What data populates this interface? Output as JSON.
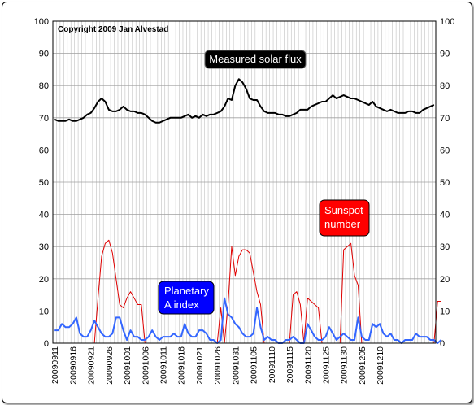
{
  "chart_data": {
    "type": "line",
    "copyright": "Copyright 2009 Jan Alvestad",
    "yticks": [
      "0",
      "10",
      "20",
      "30",
      "40",
      "50",
      "60",
      "70",
      "80",
      "90",
      "100"
    ],
    "ylim": [
      0,
      100
    ],
    "grid": true,
    "x_tick_labels": [
      "20090911",
      "20090916",
      "20090921",
      "20090926",
      "20091001",
      "20091006",
      "20091011",
      "20091016",
      "20091021",
      "20091026",
      "20091031",
      "20091105",
      "20091110",
      "20091115",
      "20091120",
      "20091125",
      "20091130",
      "20091205",
      "20091210"
    ],
    "labels": {
      "solar_flux": "Measured solar flux",
      "sunspot": [
        "Sunspot",
        "number"
      ],
      "planetary": [
        "Planetary",
        "A index"
      ]
    },
    "colors": {
      "solar_flux": "#000000",
      "sunspot": "#e00000",
      "planetary": "#3366ff",
      "sunspot_box": "#ff0000",
      "planetary_box": "#0000ff",
      "solar_box": "#000000",
      "grid": "#c0c0c0"
    },
    "start_date": "2009-09-11",
    "series": [
      {
        "key": "solar_flux",
        "values": [
          69.5,
          69,
          69,
          69,
          69.5,
          69,
          69,
          69.5,
          70,
          71,
          71.5,
          73,
          75,
          76,
          75,
          72.5,
          72,
          72,
          72.5,
          73.5,
          72.5,
          72,
          72,
          71.5,
          71.5,
          71,
          70,
          69,
          68.5,
          68.5,
          69,
          69.5,
          70,
          70,
          70,
          70,
          70.5,
          71,
          70,
          70.5,
          70,
          71,
          70.5,
          71,
          71,
          71.5,
          72,
          73.5,
          76,
          75.5,
          80,
          82,
          81,
          79,
          76,
          75.5,
          75.5,
          73.5,
          72,
          71.5,
          71.5,
          71.5,
          71,
          71,
          70.5,
          70.5,
          71,
          71.5,
          72.5,
          72.5,
          72.5,
          73.5,
          74,
          74.5,
          75,
          75,
          76,
          77,
          76,
          76.5,
          77,
          76.5,
          76,
          76,
          75.5,
          75,
          74.5,
          74,
          75,
          73.5,
          73,
          72.5,
          72,
          72.5,
          72,
          71.5,
          71.5,
          71.5,
          72,
          72,
          71.5,
          71.5,
          72.5,
          73,
          73.5,
          74
        ]
      },
      {
        "key": "sunspot",
        "values": [
          0,
          0,
          0,
          0,
          0,
          0,
          0,
          0,
          0,
          0,
          0,
          0,
          14,
          27,
          31,
          32,
          28,
          20,
          12,
          11,
          14,
          16,
          14,
          12,
          12,
          0,
          0,
          0,
          0,
          0,
          0,
          0,
          0,
          0,
          0,
          0,
          0,
          0,
          0,
          0,
          0,
          0,
          0,
          0,
          0,
          0,
          11,
          0,
          12,
          30,
          21,
          27,
          29,
          29,
          28,
          22,
          16,
          12,
          0,
          0,
          0,
          0,
          0,
          0,
          0,
          0,
          15,
          16,
          12,
          0,
          14,
          13,
          12,
          11,
          0,
          0,
          0,
          0,
          0,
          0,
          29,
          30,
          31,
          21,
          18,
          0,
          0,
          0,
          0,
          0,
          0,
          0,
          0,
          0,
          0,
          0,
          0,
          0,
          0,
          0,
          0,
          0,
          0,
          0,
          0,
          0,
          13,
          13
        ]
      },
      {
        "key": "planetary",
        "values": [
          4,
          4,
          6,
          5,
          5,
          6,
          8,
          3,
          2,
          2,
          4,
          7,
          5,
          3,
          2,
          2,
          3,
          8,
          8,
          4,
          1,
          4,
          2,
          2,
          1,
          1,
          2,
          4,
          2,
          1,
          2,
          2,
          2,
          3,
          2,
          2,
          6,
          3,
          2,
          2,
          4,
          4,
          3,
          1,
          1,
          0,
          1,
          14,
          9,
          8,
          6,
          5,
          3,
          2,
          2,
          3,
          11,
          5,
          1,
          2,
          1,
          1,
          0,
          0,
          1,
          1,
          2,
          1,
          0,
          0,
          6,
          4,
          2,
          1,
          1,
          2,
          5,
          3,
          1,
          2,
          3,
          2,
          1,
          1,
          8,
          2,
          1,
          1,
          6,
          5,
          6,
          3,
          2,
          3,
          1,
          1,
          0,
          1,
          1,
          1,
          3,
          2,
          2,
          2,
          1,
          1,
          0,
          1
        ]
      }
    ]
  }
}
